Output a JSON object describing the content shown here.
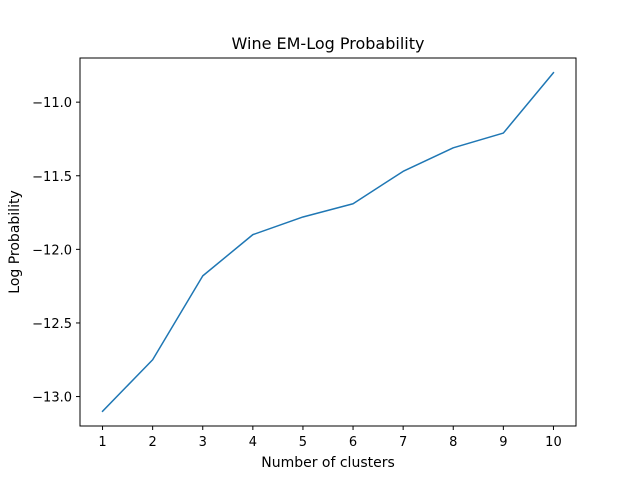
{
  "chart_data": {
    "type": "line",
    "title": "Wine EM-Log Probability",
    "xlabel": "Number of clusters",
    "ylabel": "Log Probability",
    "x": [
      1,
      2,
      3,
      4,
      5,
      6,
      7,
      8,
      9,
      10
    ],
    "series": [
      {
        "values": [
          -13.1,
          -12.75,
          -12.18,
          -11.9,
          -11.78,
          -11.69,
          -11.47,
          -11.31,
          -11.21,
          -10.8
        ],
        "color": "#1f77b4"
      }
    ],
    "xlim": [
      0.55,
      10.45
    ],
    "ylim": [
      -13.2,
      -10.7
    ],
    "xticks": [
      1,
      2,
      3,
      4,
      5,
      6,
      7,
      8,
      9,
      10
    ],
    "yticks": [
      -13.0,
      -12.5,
      -12.0,
      -11.5,
      -11.0
    ],
    "ytick_labels": [
      "−13.0",
      "−12.5",
      "−12.0",
      "−11.5",
      "−11.0"
    ],
    "grid": false,
    "legend": false
  }
}
